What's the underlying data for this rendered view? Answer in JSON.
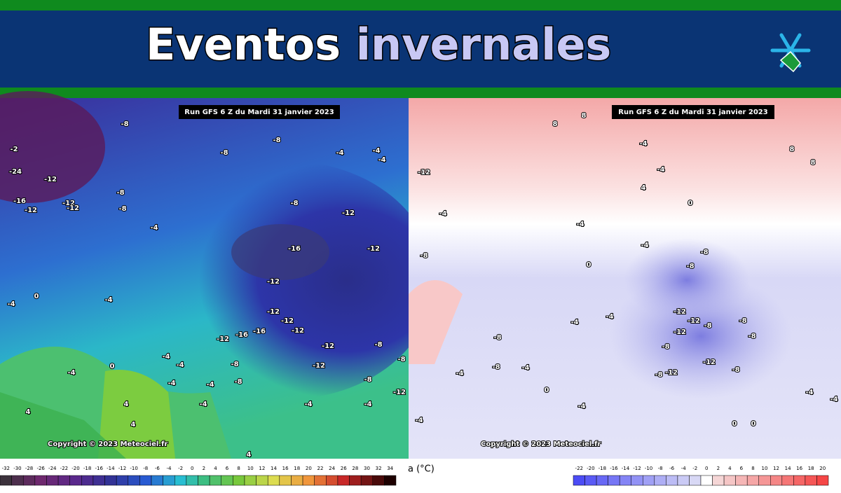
{
  "header": {
    "title_1": "Eventos",
    "title_2": "invernales"
  },
  "maps": [
    {
      "run": "Run GFS 6 Z du Mardi 31 janvier 2023",
      "copyright": "Copyright © 2023 Meteociel.fr",
      "labels": [
        -2,
        -24,
        -12,
        -16,
        -12,
        -12,
        -12,
        -8,
        -8,
        -8,
        -8,
        -8,
        -4,
        -4,
        -4,
        -4,
        -8,
        -12,
        -12,
        -16,
        -12,
        -12,
        -12,
        -12,
        -16,
        -16,
        -12,
        -12,
        -12,
        -8,
        -8,
        -4,
        -4,
        -4,
        -4,
        0,
        -4,
        -4,
        0,
        -4,
        4,
        4,
        4,
        -4,
        -4,
        -8,
        -8,
        -12,
        -8,
        -4,
        4
      ]
    },
    {
      "run": "Run GFS 6 Z du Mardi 31 janvier 2023",
      "copyright": "Copyright © 2023 Meteociel.fr",
      "labels": [
        8,
        8,
        -4,
        -4,
        4,
        8,
        8,
        -12,
        -4,
        -8,
        -4,
        0,
        0,
        -4,
        -8,
        -8,
        -12,
        -12,
        -8,
        -8,
        -8,
        -12,
        -8,
        -12,
        -12,
        -8,
        -8,
        -4,
        -4,
        -8,
        -8,
        -4,
        -4,
        0,
        -4,
        -4,
        0,
        0,
        -4,
        -4
      ]
    }
  ],
  "legend_left": {
    "ticks": [
      -32,
      -30,
      -28,
      -26,
      -24,
      -22,
      -20,
      -18,
      -16,
      -14,
      -12,
      -10,
      -8,
      -6,
      -4,
      -2,
      0,
      2,
      4,
      6,
      8,
      10,
      12,
      14,
      16,
      18,
      20,
      22,
      24,
      26,
      28,
      30,
      32,
      34
    ]
  },
  "unit": "a (°C)",
  "legend_right": {
    "ticks": [
      -22,
      -20,
      -18,
      -16,
      -14,
      -12,
      -10,
      -8,
      -6,
      -4,
      -2,
      0,
      2,
      4,
      6,
      8,
      10,
      12,
      14,
      16,
      18,
      20
    ]
  }
}
